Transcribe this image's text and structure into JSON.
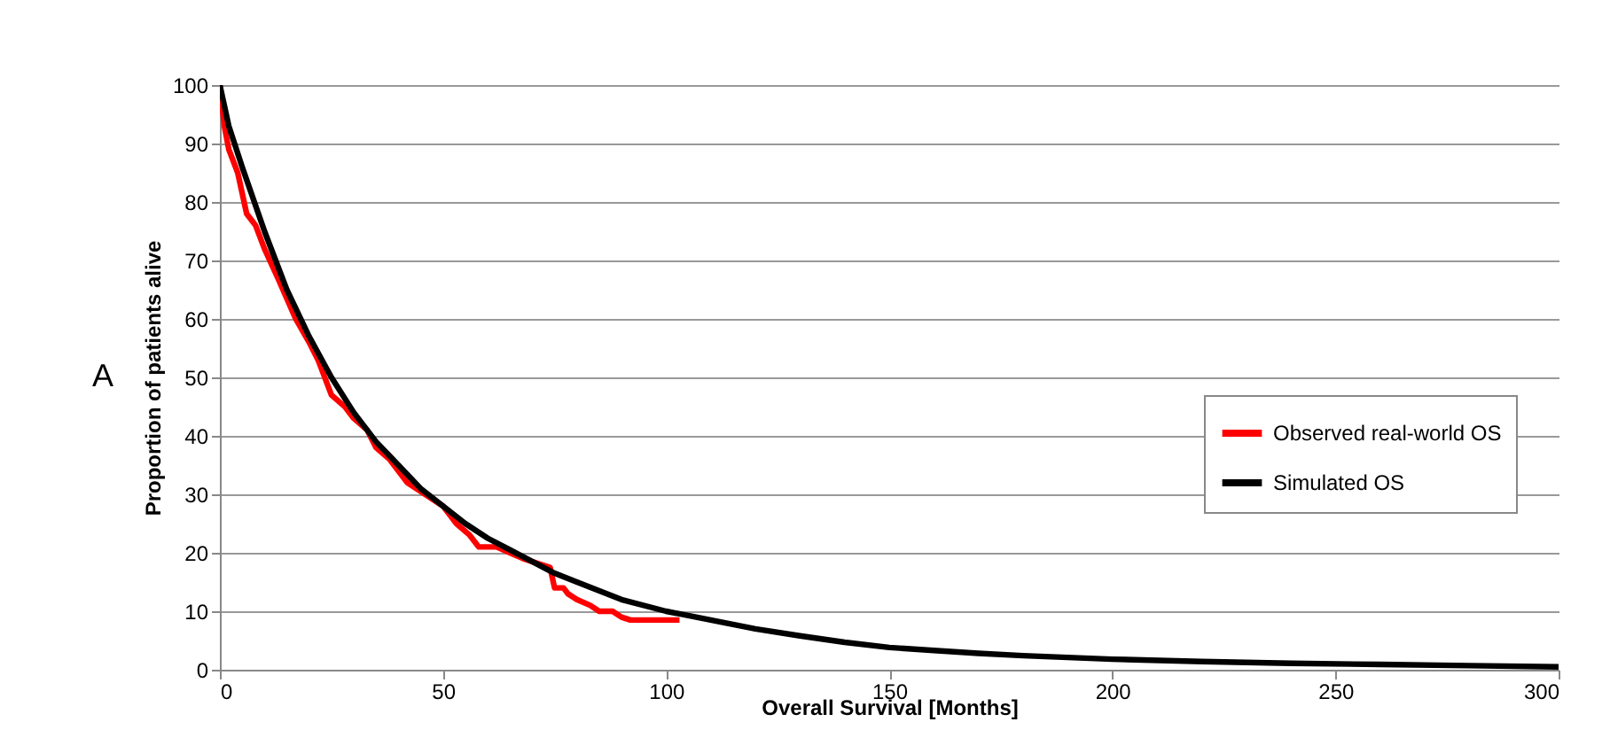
{
  "chart_data": {
    "type": "line",
    "xlabel": "Overall Survival [Months]",
    "ylabel": "Proportion of patients alive",
    "annotations": [
      "A"
    ],
    "series": [
      {
        "name": "Observed real-world OS",
        "color": "#ff0000",
        "x": [
          0,
          1,
          2,
          4,
          6,
          8,
          10,
          13,
          17,
          20,
          22,
          24,
          25,
          28,
          30,
          33,
          35,
          38,
          42,
          46,
          50,
          53,
          56,
          58,
          62,
          65,
          68,
          72,
          74,
          75,
          77,
          78,
          80,
          83,
          85,
          88,
          90,
          92,
          96,
          100,
          103
        ],
        "values": [
          100,
          93,
          89,
          85,
          78,
          76,
          72,
          67,
          60,
          56,
          53,
          49,
          47,
          45,
          43,
          41,
          38,
          36,
          32,
          30,
          28,
          25,
          23,
          21,
          21,
          20,
          19,
          18,
          17.5,
          14,
          14,
          13,
          12,
          11,
          10,
          10,
          9,
          8.5,
          8.5,
          8.5,
          8.5
        ]
      },
      {
        "name": "Simulated OS",
        "color": "#000000",
        "x": [
          0,
          2,
          5,
          10,
          15,
          20,
          25,
          30,
          35,
          40,
          45,
          50,
          55,
          60,
          65,
          70,
          75,
          80,
          90,
          100,
          110,
          120,
          130,
          140,
          150,
          160,
          170,
          180,
          190,
          200,
          220,
          240,
          260,
          280,
          300
        ],
        "values": [
          100,
          93,
          86,
          75,
          65,
          57,
          50,
          44,
          39,
          35,
          31,
          28,
          25,
          22.5,
          20.5,
          18.5,
          16.5,
          15,
          12,
          10,
          8.5,
          7,
          5.8,
          4.7,
          3.8,
          3.3,
          2.8,
          2.4,
          2.1,
          1.8,
          1.4,
          1.1,
          0.9,
          0.7,
          0.5
        ]
      }
    ],
    "xlim": [
      0,
      300
    ],
    "xticks": [
      0,
      50,
      100,
      150,
      200,
      250,
      300
    ],
    "ylim": [
      0,
      100
    ],
    "yticks": [
      0,
      10,
      20,
      30,
      40,
      50,
      60,
      70,
      80,
      90,
      100
    ],
    "grid": "y",
    "legend": "right",
    "marker": "none",
    "line_style": "solid"
  }
}
